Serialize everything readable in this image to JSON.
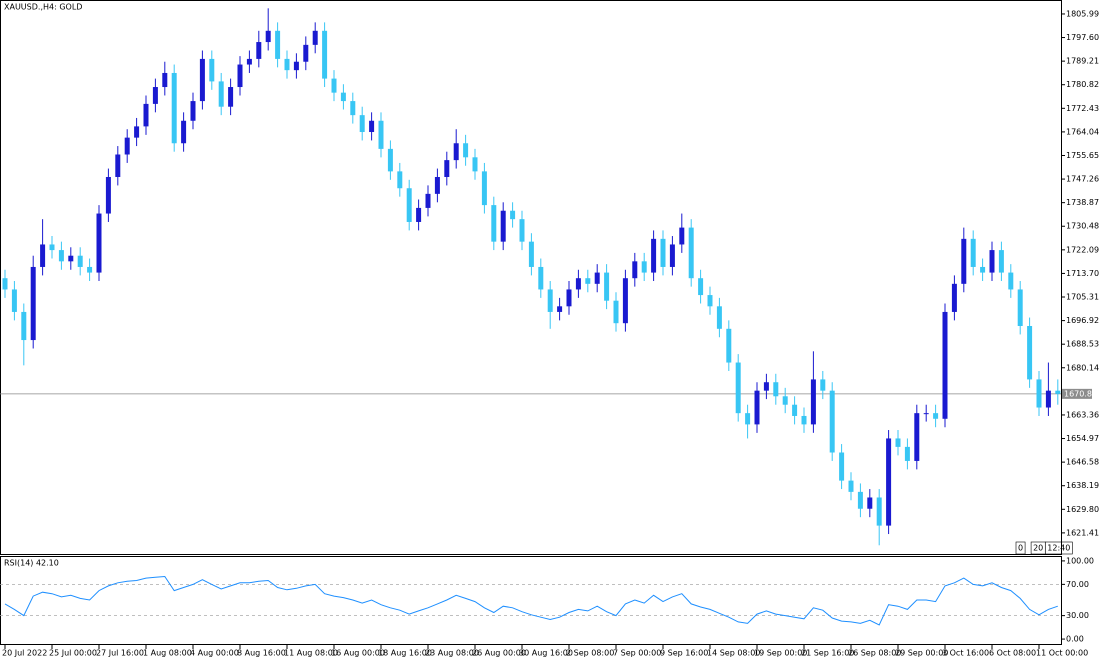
{
  "chart_data": [
    {
      "type": "candlestick",
      "title": "XAUUSD.,H4: GOLD",
      "categories": [
        "20 Jul 2022",
        null,
        null,
        null,
        null,
        "25 Jul 00:00",
        null,
        null,
        null,
        null,
        "27 Jul 16:00",
        null,
        null,
        null,
        null,
        "1 Aug 08:00",
        null,
        null,
        null,
        null,
        "4 Aug 00:00",
        null,
        null,
        null,
        null,
        "8 Aug 16:00",
        null,
        null,
        null,
        null,
        "11 Aug 08:00",
        null,
        null,
        null,
        null,
        "16 Aug 00:00",
        null,
        null,
        null,
        null,
        "18 Aug 16:00",
        null,
        null,
        null,
        null,
        "23 Aug 08:00",
        null,
        null,
        null,
        null,
        "26 Aug 00:00",
        null,
        null,
        null,
        null,
        "30 Aug 16:00",
        null,
        null,
        null,
        null,
        "2 Sep 08:00",
        null,
        null,
        null,
        null,
        "7 Sep 00:00",
        null,
        null,
        null,
        null,
        "9 Sep 16:00",
        null,
        null,
        null,
        null,
        "14 Sep 08:00",
        null,
        null,
        null,
        null,
        "19 Sep 00:00",
        null,
        null,
        null,
        null,
        "21 Sep 16:00",
        null,
        null,
        null,
        null,
        "26 Sep 08:00",
        null,
        null,
        null,
        null,
        "29 Sep 00:00",
        null,
        null,
        null,
        null,
        "3 Oct 16:00",
        null,
        null,
        null,
        null,
        "6 Oct 08:00",
        null,
        null,
        null,
        null,
        "11 Oct 00:00",
        null,
        null
      ],
      "open": [
        1712,
        1708,
        1700,
        1690,
        1716,
        1724,
        1722,
        1718,
        1720,
        1716,
        1714,
        1735,
        1748,
        1756,
        1762,
        1766,
        1774,
        1780,
        1785,
        1760,
        1768,
        1775,
        1790,
        1782,
        1773,
        1780,
        1788,
        1790,
        1796,
        1800,
        1790,
        1786,
        1789,
        1795,
        1800,
        1783,
        1778,
        1775,
        1770,
        1764,
        1768,
        1758,
        1750,
        1744,
        1732,
        1737,
        1742,
        1748,
        1754,
        1760,
        1755,
        1750,
        1738,
        1725,
        1736,
        1733,
        1725,
        1716,
        1708,
        1700,
        1702,
        1708,
        1712,
        1710,
        1714,
        1704,
        1696,
        1712,
        1718,
        1714,
        1726,
        1716,
        1724,
        1730,
        1712,
        1706,
        1702,
        1694,
        1682,
        1664,
        1660,
        1672,
        1675,
        1670,
        1667,
        1663,
        1660,
        1676,
        1672,
        1650,
        1640,
        1636,
        1630,
        1634,
        1624,
        1655,
        1652,
        1647,
        1664,
        1664,
        1662,
        1700,
        1710,
        1726,
        1716,
        1714,
        1722,
        1714,
        1708,
        1695,
        1676,
        1666,
        1672
      ],
      "high": [
        1715,
        1711,
        1703,
        1720,
        1733,
        1727,
        1725,
        1723,
        1723,
        1719,
        1738,
        1751,
        1759,
        1765,
        1769,
        1777,
        1783,
        1789,
        1788,
        1771,
        1778,
        1793,
        1793,
        1785,
        1783,
        1791,
        1793,
        1800,
        1808,
        1803,
        1793,
        1792,
        1798,
        1803,
        1803,
        1786,
        1781,
        1778,
        1773,
        1771,
        1771,
        1761,
        1753,
        1747,
        1740,
        1745,
        1751,
        1757,
        1765,
        1763,
        1758,
        1753,
        1741,
        1739,
        1739,
        1736,
        1728,
        1719,
        1711,
        1705,
        1711,
        1715,
        1715,
        1717,
        1717,
        1707,
        1715,
        1721,
        1721,
        1729,
        1729,
        1727,
        1735,
        1733,
        1715,
        1709,
        1705,
        1697,
        1685,
        1667,
        1675,
        1678,
        1678,
        1673,
        1670,
        1666,
        1686,
        1679,
        1675,
        1653,
        1643,
        1639,
        1637,
        1637,
        1658,
        1658,
        1655,
        1667,
        1667,
        1667,
        1703,
        1713,
        1730,
        1729,
        1719,
        1725,
        1725,
        1717,
        1711,
        1698,
        1679,
        1682,
        1676
      ],
      "low": [
        1705,
        1697,
        1681,
        1687,
        1713,
        1719,
        1715,
        1715,
        1713,
        1711,
        1711,
        1732,
        1745,
        1753,
        1759,
        1763,
        1771,
        1777,
        1757,
        1757,
        1765,
        1772,
        1779,
        1770,
        1770,
        1777,
        1785,
        1787,
        1793,
        1787,
        1783,
        1783,
        1786,
        1792,
        1780,
        1775,
        1772,
        1767,
        1761,
        1761,
        1755,
        1747,
        1741,
        1729,
        1729,
        1734,
        1739,
        1745,
        1751,
        1752,
        1747,
        1735,
        1722,
        1722,
        1730,
        1722,
        1713,
        1705,
        1694,
        1697,
        1699,
        1705,
        1707,
        1707,
        1701,
        1693,
        1693,
        1709,
        1711,
        1711,
        1713,
        1713,
        1721,
        1709,
        1703,
        1699,
        1691,
        1679,
        1661,
        1655,
        1657,
        1669,
        1667,
        1664,
        1660,
        1657,
        1657,
        1669,
        1647,
        1637,
        1633,
        1627,
        1627,
        1617,
        1621,
        1649,
        1644,
        1644,
        1661,
        1659,
        1659,
        1697,
        1707,
        1713,
        1711,
        1711,
        1711,
        1705,
        1692,
        1673,
        1663,
        1663,
        1667
      ],
      "close": [
        1708,
        1700,
        1690,
        1716,
        1724,
        1722,
        1718,
        1720,
        1716,
        1714,
        1735,
        1748,
        1756,
        1762,
        1766,
        1774,
        1780,
        1785,
        1760,
        1768,
        1775,
        1790,
        1782,
        1773,
        1780,
        1788,
        1790,
        1796,
        1800,
        1790,
        1786,
        1789,
        1795,
        1800,
        1783,
        1778,
        1775,
        1770,
        1764,
        1768,
        1758,
        1750,
        1744,
        1732,
        1737,
        1742,
        1748,
        1754,
        1760,
        1755,
        1750,
        1738,
        1725,
        1736,
        1733,
        1725,
        1716,
        1708,
        1700,
        1702,
        1708,
        1712,
        1710,
        1714,
        1704,
        1696,
        1712,
        1718,
        1714,
        1726,
        1716,
        1724,
        1730,
        1712,
        1706,
        1702,
        1694,
        1682,
        1664,
        1660,
        1672,
        1675,
        1670,
        1667,
        1663,
        1660,
        1676,
        1672,
        1650,
        1640,
        1636,
        1630,
        1634,
        1624,
        1655,
        1652,
        1647,
        1664,
        1664,
        1662,
        1700,
        1710,
        1726,
        1716,
        1714,
        1722,
        1714,
        1708,
        1695,
        1676,
        1666,
        1672,
        1670.86
      ],
      "up_color": "#1a1ad0",
      "down_color": "#38c6f4",
      "current_price": {
        "value": 1670.86,
        "label": "1670.86"
      },
      "ylim": [
        1613.9,
        1810.6
      ],
      "yticks": [
        {
          "value": 1805.99,
          "label": "1805.99"
        },
        {
          "value": 1797.6,
          "label": "1797.60"
        },
        {
          "value": 1789.21,
          "label": "1789.21"
        },
        {
          "value": 1780.82,
          "label": "1780.82"
        },
        {
          "value": 1772.43,
          "label": "1772.43"
        },
        {
          "value": 1764.04,
          "label": "1764.04"
        },
        {
          "value": 1755.65,
          "label": "1755.65"
        },
        {
          "value": 1747.26,
          "label": "1747.26"
        },
        {
          "value": 1738.87,
          "label": "1738.87"
        },
        {
          "value": 1730.48,
          "label": "1730.48"
        },
        {
          "value": 1722.09,
          "label": "1722.09"
        },
        {
          "value": 1713.7,
          "label": "1713.70"
        },
        {
          "value": 1705.31,
          "label": "1705.31"
        },
        {
          "value": 1696.92,
          "label": "1696.92"
        },
        {
          "value": 1688.53,
          "label": "1688.53"
        },
        {
          "value": 1680.14,
          "label": "1680.14"
        },
        {
          "value": 1663.36,
          "label": "1663.36"
        },
        {
          "value": 1654.97,
          "label": "1654.97"
        },
        {
          "value": 1646.58,
          "label": "1646.58"
        },
        {
          "value": 1638.19,
          "label": "1638.19"
        },
        {
          "value": 1629.8,
          "label": "1629.80"
        },
        {
          "value": 1621.41,
          "label": "1621.41"
        }
      ],
      "scale_box": [
        "0",
        "20",
        "12:40"
      ]
    },
    {
      "type": "line",
      "title": "RSI(14) 42.10",
      "color": "#1e8fff",
      "values": [
        45,
        38,
        30,
        55,
        60,
        58,
        54,
        56,
        52,
        50,
        62,
        68,
        72,
        74,
        75,
        78,
        79,
        80,
        62,
        66,
        70,
        76,
        70,
        64,
        68,
        72,
        72,
        74,
        75,
        66,
        63,
        65,
        68,
        70,
        58,
        55,
        53,
        50,
        46,
        50,
        44,
        40,
        37,
        32,
        36,
        40,
        45,
        50,
        56,
        52,
        48,
        40,
        34,
        42,
        40,
        35,
        31,
        28,
        25,
        28,
        34,
        38,
        36,
        42,
        35,
        30,
        45,
        50,
        46,
        56,
        48,
        54,
        58,
        45,
        41,
        38,
        33,
        28,
        22,
        20,
        32,
        36,
        32,
        30,
        28,
        26,
        40,
        37,
        27,
        23,
        22,
        20,
        24,
        18,
        44,
        42,
        38,
        50,
        50,
        48,
        68,
        72,
        78,
        70,
        68,
        72,
        66,
        62,
        52,
        38,
        31,
        38,
        42.1
      ],
      "ylim": [
        -6.3,
        105
      ],
      "yticks": [
        {
          "value": 100,
          "label": "100.00"
        },
        {
          "value": 70,
          "label": "70.00"
        },
        {
          "value": 30,
          "label": "30.00"
        },
        {
          "value": 0,
          "label": "0.00"
        }
      ],
      "levels": [
        70,
        30
      ]
    }
  ]
}
